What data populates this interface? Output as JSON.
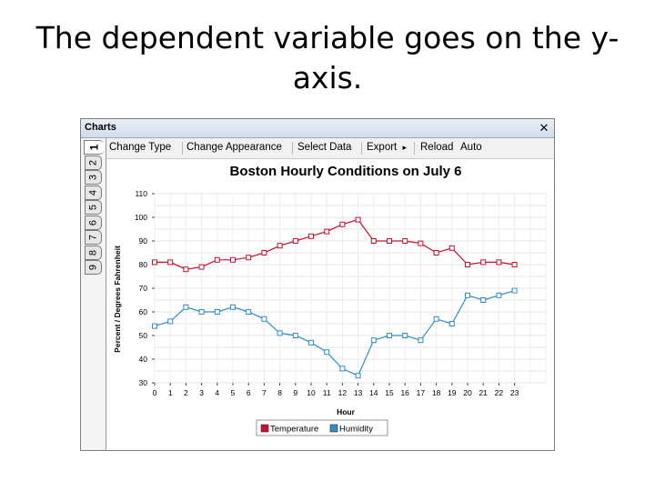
{
  "slide": {
    "title": "The dependent variable goes on the y-axis."
  },
  "window": {
    "title": "Charts",
    "close_symbol": "✕"
  },
  "toolbar": {
    "change_type": "Change Type",
    "change_appearance": "Change Appearance",
    "select_data": "Select Data",
    "export": "Export",
    "export_arrow": "▸",
    "reload": "Reload",
    "auto": "Auto"
  },
  "tabs": [
    "1",
    "2",
    "3",
    "4",
    "5",
    "6",
    "7",
    "8",
    "9"
  ],
  "chart_data": {
    "type": "line",
    "title": "Boston Hourly Conditions on July 6",
    "xlabel": "Hour",
    "ylabel": "Percent / Degrees Fahrenheit",
    "x": [
      0,
      1,
      2,
      3,
      4,
      5,
      6,
      7,
      8,
      9,
      10,
      11,
      12,
      13,
      14,
      15,
      16,
      17,
      18,
      19,
      20,
      21,
      22,
      23
    ],
    "ylim": [
      30,
      110
    ],
    "yticks": [
      30,
      40,
      50,
      60,
      70,
      80,
      90,
      100,
      110
    ],
    "grid": true,
    "legend_position": "bottom",
    "series": [
      {
        "name": "Temperature",
        "color": "#c8102e",
        "values": [
          81,
          81,
          78,
          79,
          82,
          82,
          83,
          85,
          88,
          90,
          92,
          94,
          97,
          99,
          90,
          90,
          90,
          89,
          85,
          87,
          80,
          81,
          81,
          80
        ]
      },
      {
        "name": "Humidity",
        "color": "#2e8ec4",
        "values": [
          54,
          56,
          62,
          60,
          60,
          62,
          60,
          57,
          51,
          50,
          47,
          43,
          36,
          33,
          48,
          50,
          50,
          48,
          57,
          55,
          67,
          65,
          67,
          69
        ]
      }
    ]
  }
}
